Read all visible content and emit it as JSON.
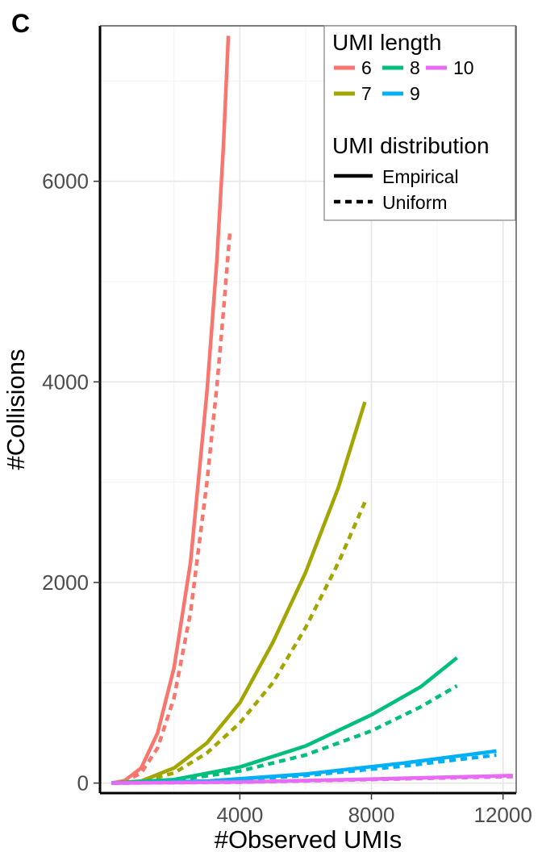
{
  "panel_label": "C",
  "chart_data": {
    "type": "line",
    "title": "",
    "xlabel": "#Observed UMIs",
    "ylabel": "#Collisions",
    "xlim": [
      -250,
      12400
    ],
    "ylim": [
      -100,
      7550
    ],
    "x_ticks": [
      4000,
      8000,
      12000
    ],
    "y_ticks": [
      0,
      2000,
      4000,
      6000
    ],
    "x_minor_gridlines": [
      2000,
      6000,
      10000
    ],
    "y_minor_gridlines": [
      1000,
      3000,
      5000,
      7000
    ],
    "grid": true,
    "legend_position": "top-right",
    "legend": {
      "color_title": "UMI length",
      "color_entries": [
        {
          "label": "6",
          "color": "#F8766D"
        },
        {
          "label": "7",
          "color": "#A3A500"
        },
        {
          "label": "8",
          "color": "#00BF7D"
        },
        {
          "label": "9",
          "color": "#00B0F6"
        },
        {
          "label": "10",
          "color": "#E76BF3"
        }
      ],
      "linetype_title": "UMI distribution",
      "linetype_entries": [
        {
          "label": "Empirical",
          "dash": "solid"
        },
        {
          "label": "Uniform",
          "dash": "dashed"
        }
      ]
    },
    "series": [
      {
        "umi_length": "6",
        "distribution": "Empirical",
        "color": "#F8766D",
        "dash": "solid",
        "x": [
          100,
          500,
          1000,
          1500,
          2000,
          2500,
          3000,
          3300,
          3500,
          3650
        ],
        "y": [
          0,
          25,
          150,
          500,
          1150,
          2200,
          3900,
          5200,
          6350,
          7450
        ]
      },
      {
        "umi_length": "6",
        "distribution": "Uniform",
        "color": "#F8766D",
        "dash": "dashed",
        "x": [
          100,
          500,
          1000,
          1500,
          2000,
          2500,
          3000,
          3300,
          3500,
          3700
        ],
        "y": [
          0,
          15,
          100,
          350,
          850,
          1700,
          3000,
          3950,
          4700,
          5500
        ]
      },
      {
        "umi_length": "7",
        "distribution": "Empirical",
        "color": "#A3A500",
        "dash": "solid",
        "x": [
          100,
          1000,
          2000,
          3000,
          4000,
          5000,
          6000,
          7000,
          7800
        ],
        "y": [
          0,
          20,
          150,
          400,
          800,
          1400,
          2100,
          2950,
          3800
        ]
      },
      {
        "umi_length": "7",
        "distribution": "Uniform",
        "color": "#A3A500",
        "dash": "dashed",
        "x": [
          100,
          1000,
          2000,
          3000,
          4000,
          5000,
          6000,
          7000,
          7800
        ],
        "y": [
          0,
          15,
          100,
          300,
          600,
          1000,
          1550,
          2200,
          2800
        ]
      },
      {
        "umi_length": "8",
        "distribution": "Empirical",
        "color": "#00BF7D",
        "dash": "solid",
        "x": [
          100,
          2000,
          4000,
          6000,
          8000,
          9500,
          10600
        ],
        "y": [
          0,
          35,
          160,
          370,
          680,
          960,
          1250
        ]
      },
      {
        "umi_length": "8",
        "distribution": "Uniform",
        "color": "#00BF7D",
        "dash": "dashed",
        "x": [
          100,
          2000,
          4000,
          6000,
          8000,
          9500,
          10600
        ],
        "y": [
          0,
          25,
          120,
          280,
          520,
          760,
          970
        ]
      },
      {
        "umi_length": "9",
        "distribution": "Empirical",
        "color": "#00B0F6",
        "dash": "solid",
        "x": [
          100,
          3000,
          6000,
          9000,
          11800
        ],
        "y": [
          0,
          20,
          90,
          200,
          320
        ]
      },
      {
        "umi_length": "9",
        "distribution": "Uniform",
        "color": "#00B0F6",
        "dash": "dashed",
        "x": [
          100,
          3000,
          6000,
          9000,
          11800
        ],
        "y": [
          0,
          15,
          75,
          170,
          280
        ]
      },
      {
        "umi_length": "10",
        "distribution": "Empirical",
        "color": "#E76BF3",
        "dash": "solid",
        "x": [
          100,
          4000,
          8000,
          12300
        ],
        "y": [
          0,
          10,
          40,
          75
        ]
      },
      {
        "umi_length": "10",
        "distribution": "Uniform",
        "color": "#E76BF3",
        "dash": "dashed",
        "x": [
          100,
          4000,
          8000,
          12300
        ],
        "y": [
          0,
          8,
          35,
          65
        ]
      }
    ]
  }
}
